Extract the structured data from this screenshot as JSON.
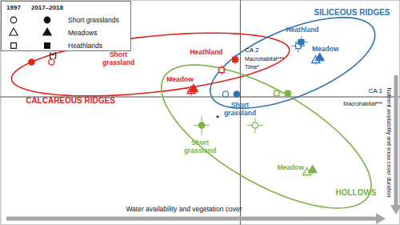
{
  "chart_data": {
    "type": "scatter",
    "xlabel": "Water availability and vegetation cover",
    "ylabel": "Nutrient availability and snow cover duration",
    "xlim": [
      -3,
      2
    ],
    "ylim": [
      -1.6,
      1.2
    ],
    "xticks": [
      0
    ],
    "yticks": [
      0
    ],
    "tick_labels": false,
    "legend": "top-left",
    "x_axis_name": "CA 1",
    "x_axis_tests": [
      "Macrohabitat***"
    ],
    "y_axis_name": "CA 2",
    "y_axis_tests": [
      "Macrohabitat***",
      "Time*"
    ],
    "periods": [
      "1997",
      "2017–2018"
    ],
    "groups": [
      {
        "name": "CALCAREOUS RIDGES",
        "color": "#e2231a",
        "labels": [
          "Short grassland",
          "Meadow",
          "Heathland"
        ],
        "ellipse": {
          "cx": -1.12,
          "cy": 0.4,
          "rx": 1.75,
          "ry": 0.35,
          "angle": 6
        }
      },
      {
        "name": "SILICEOUS RIDGES",
        "color": "#2e75b6",
        "labels": [
          "Short grassland",
          "Meadow",
          "Heathland"
        ],
        "ellipse": {
          "cx": 0.66,
          "cy": 0.42,
          "rx": 1.1,
          "ry": 0.42,
          "angle": 22
        }
      },
      {
        "name": "HOLLOWS",
        "color": "#7cb342",
        "labels": [
          "Short grassland",
          "Meadow",
          null
        ],
        "ellipse": {
          "cx": 0.33,
          "cy": -0.5,
          "rx": 1.48,
          "ry": 0.58,
          "angle": -30
        }
      }
    ],
    "series": [
      {
        "name": "Short grasslands",
        "period": "1997",
        "marker": "circle",
        "x": [
          -2.36,
          -0.18,
          0.19
        ],
        "values": [
          0.43,
          0.03,
          -0.36
        ],
        "xerr": [
          0.04,
          0.03,
          0.1
        ],
        "yerr": [
          0.04,
          0.02,
          0.1
        ]
      },
      {
        "name": "Short grasslands",
        "period": "2017–2018",
        "marker": "circle",
        "x": [
          -2.61,
          -0.04,
          -0.48
        ],
        "values": [
          0.43,
          0.03,
          -0.36
        ],
        "xerr": [
          0.04,
          0.03,
          0.1
        ],
        "yerr": [
          0.03,
          0.02,
          0.12
        ]
      },
      {
        "name": "Meadows",
        "period": "1997",
        "marker": "triangle",
        "x": [
          -0.61,
          0.95,
          0.84
        ],
        "values": [
          0.07,
          0.45,
          -0.95
        ],
        "xerr": [
          0.05,
          0.04,
          0.05
        ],
        "yerr": [
          0.06,
          0.05,
          0.05
        ]
      },
      {
        "name": "Meadows",
        "period": "2017–2018",
        "marker": "triangle",
        "x": [
          -0.58,
          1.0,
          0.91
        ],
        "values": [
          0.09,
          0.48,
          -0.92
        ],
        "xerr": [
          0.05,
          0.05,
          0.04
        ],
        "yerr": [
          0.06,
          0.06,
          0.05
        ]
      },
      {
        "name": "Heathlands",
        "period": "1997",
        "marker": "square",
        "x": [
          -0.23,
          0.73,
          0.46
        ],
        "values": [
          0.33,
          0.63,
          0.04
        ],
        "xerr": [
          0.05,
          0.08,
          0.05
        ],
        "yerr": [
          0.06,
          0.08,
          0.04
        ]
      },
      {
        "name": "Heathlands",
        "period": "2017–2018",
        "marker": "square",
        "x": [
          -0.06,
          0.77,
          0.6
        ],
        "values": [
          0.46,
          0.68,
          0.04
        ],
        "xerr": [
          0.05,
          0.08,
          0.05
        ],
        "yerr": [
          0.06,
          0.07,
          0.04
        ]
      }
    ],
    "annotations": [
      "(*)",
      "*"
    ]
  }
}
